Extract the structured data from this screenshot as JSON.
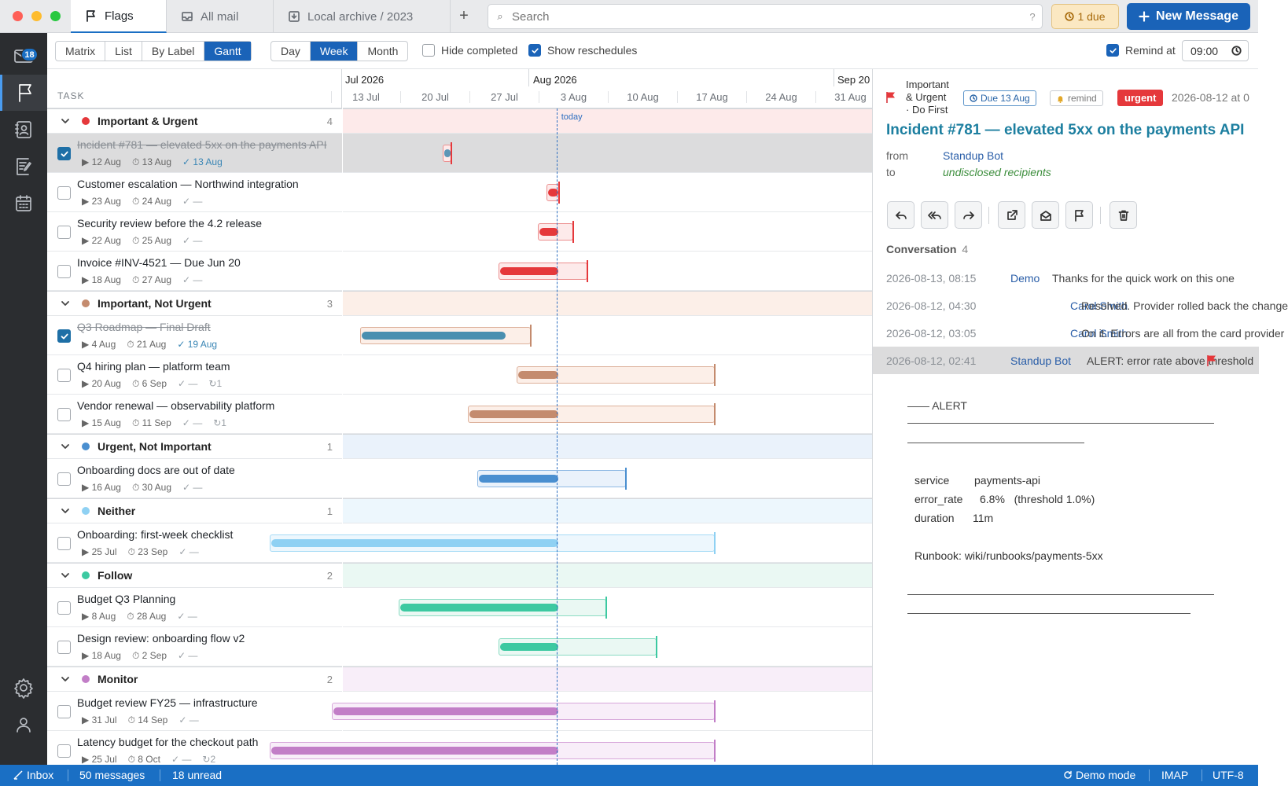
{
  "titlebar": {
    "tabs": [
      {
        "label": "Flags"
      },
      {
        "label": "All mail"
      },
      {
        "label": "Local archive / 2023"
      }
    ],
    "add_tab": "+",
    "search_placeholder": "Search",
    "search_help": "?",
    "due_label": "1 due",
    "new_message": "New Message"
  },
  "rail": {
    "inbox_badge": "18"
  },
  "toolbar": {
    "views": [
      "Matrix",
      "List",
      "By Label",
      "Gantt"
    ],
    "active_view": "Gantt",
    "scales": [
      "Day",
      "Week",
      "Month"
    ],
    "active_scale": "Week",
    "hide_completed": {
      "label": "Hide completed",
      "checked": false
    },
    "show_reschedules": {
      "label": "Show reschedules",
      "checked": true
    },
    "remind_at": {
      "label": "Remind at",
      "checked": true,
      "time": "09:00"
    }
  },
  "task_header": "TASK",
  "timeline": {
    "months": [
      "Jul 2026",
      "Aug 2026",
      "Sep 20"
    ],
    "weeks": [
      "13 Jul",
      "20 Jul",
      "27 Jul",
      "3 Aug",
      "10 Aug",
      "17 Aug",
      "24 Aug",
      "31 Aug"
    ],
    "today_label": "today"
  },
  "groups": [
    {
      "name": "Important & Urgent",
      "count": "4",
      "color": "#e5383b",
      "light": "#fdeaea",
      "mid": "#f4bcbc",
      "border": "#ec8f8f",
      "tasks": [
        {
          "title": "Incident #781 — elevated 5xx on the payments API",
          "start": "12 Aug",
          "due": "13 Aug",
          "done": "13 Aug",
          "completed": true,
          "selected": true,
          "reschedules": "",
          "bar": {
            "start": 12.5,
            "inner_start": 12.5,
            "inner_end": 13.1,
            "end": 13.4
          },
          "inner_color": "#5c96b6"
        },
        {
          "title": "Customer escalation — Northwind integration",
          "start": "23 Aug",
          "due": "24 Aug",
          "done": "—",
          "completed": false,
          "selected": false,
          "reschedules": "",
          "bar": {
            "start": 23,
            "inner_start": 23,
            "inner_end": 24,
            "end": 24.3
          }
        },
        {
          "title": "Security review before the 4.2 release",
          "start": "22 Aug",
          "due": "25 Aug",
          "done": "—",
          "completed": false,
          "selected": false,
          "reschedules": "",
          "bar": {
            "start": 22.1,
            "inner_start": 22.1,
            "inner_end": 24,
            "end": 25.7
          }
        },
        {
          "title": "Invoice #INV-4521 — Due Jun 20",
          "start": "18 Aug",
          "due": "27 Aug",
          "done": "—",
          "completed": false,
          "selected": false,
          "reschedules": "",
          "bar": {
            "start": 18.1,
            "inner_start": 18.1,
            "inner_end": 24,
            "end": 27.1
          }
        }
      ]
    },
    {
      "name": "Important, Not Urgent",
      "count": "3",
      "color": "#c48b6e",
      "light": "#fcefe8",
      "mid": "#ecc7b4",
      "border": "#ddb19b",
      "tasks": [
        {
          "title": "Q3 Roadmap — Final Draft",
          "start": "4 Aug",
          "due": "21 Aug",
          "done": "19 Aug",
          "completed": true,
          "selected": false,
          "reschedules": "",
          "bar": {
            "start": 4.1,
            "inner_start": 4.1,
            "inner_end": 18.7,
            "end": 21.4
          },
          "inner_color": "#4a8fb0"
        },
        {
          "title": "Q4 hiring plan — platform team",
          "start": "20 Aug",
          "due": "6 Sep",
          "done": "—",
          "completed": false,
          "selected": false,
          "reschedules": "1",
          "bar": {
            "start": 20,
            "inner_start": 20,
            "inner_end": 24,
            "end": 40
          }
        },
        {
          "title": "Vendor renewal — observability platform",
          "start": "15 Aug",
          "due": "11 Sep",
          "done": "—",
          "completed": false,
          "selected": false,
          "reschedules": "1",
          "bar": {
            "start": 15,
            "inner_start": 15,
            "inner_end": 24,
            "end": 40
          }
        }
      ]
    },
    {
      "name": "Urgent, Not Important",
      "count": "1",
      "color": "#4a8fd0",
      "light": "#eaf2fb",
      "mid": "#bcd6ef",
      "border": "#8fb9e4",
      "tasks": [
        {
          "title": "Onboarding docs are out of date",
          "start": "16 Aug",
          "due": "30 Aug",
          "done": "—",
          "completed": false,
          "selected": false,
          "reschedules": "",
          "bar": {
            "start": 16,
            "inner_start": 16,
            "inner_end": 24,
            "end": 31
          }
        }
      ]
    },
    {
      "name": "Neither",
      "count": "1",
      "color": "#8fd1f3",
      "light": "#edf7fd",
      "mid": "#bde5f8",
      "border": "#a6dbf6",
      "tasks": [
        {
          "title": "Onboarding: first-week checklist",
          "start": "25 Jul",
          "due": "23 Sep",
          "done": "—",
          "completed": false,
          "selected": false,
          "reschedules": "",
          "bar": {
            "start": -5,
            "inner_start": -5,
            "inner_end": 24,
            "end": 40
          }
        }
      ]
    },
    {
      "name": "Follow",
      "count": "2",
      "color": "#3cc9a1",
      "light": "#eaf8f3",
      "mid": "#b9ebdb",
      "border": "#8bdcc3",
      "tasks": [
        {
          "title": "Budget Q3 Planning",
          "start": "8 Aug",
          "due": "28 Aug",
          "done": "—",
          "completed": false,
          "selected": false,
          "reschedules": "",
          "bar": {
            "start": 8,
            "inner_start": 8,
            "inner_end": 24,
            "end": 29
          }
        },
        {
          "title": "Design review: onboarding flow v2",
          "start": "18 Aug",
          "due": "2 Sep",
          "done": "—",
          "completed": false,
          "selected": false,
          "reschedules": "",
          "bar": {
            "start": 18.1,
            "inner_start": 18.1,
            "inner_end": 24,
            "end": 34.1
          }
        }
      ]
    },
    {
      "name": "Monitor",
      "count": "2",
      "color": "#c27ec7",
      "light": "#f8eef9",
      "mid": "#e6c6e8",
      "border": "#d7a6da",
      "tasks": [
        {
          "title": "Budget review FY25 — infrastructure",
          "start": "31 Jul",
          "due": "14 Sep",
          "done": "—",
          "completed": false,
          "selected": false,
          "reschedules": "",
          "bar": {
            "start": 1.3,
            "inner_start": 1.3,
            "inner_end": 24,
            "end": 40
          }
        },
        {
          "title": "Latency budget for the checkout path",
          "start": "25 Jul",
          "due": "8 Oct",
          "done": "—",
          "completed": false,
          "selected": false,
          "reschedules": "2",
          "bar": {
            "start": -5,
            "inner_start": -5,
            "inner_end": 24,
            "end": 40
          }
        }
      ]
    }
  ],
  "message": {
    "category": [
      "Important",
      "& Urgent",
      "· Do First"
    ],
    "due_chip": "Due 13 Aug",
    "remind_chip": "remind",
    "urgent_chip": "urgent",
    "date": "2026-08-12 at 0",
    "subject": "Incident #781 — elevated 5xx on the payments API",
    "from_label": "from",
    "from_value": "Standup Bot",
    "to_label": "to",
    "to_value": "undisclosed recipients",
    "conversation_label": "Conversation",
    "conversation_count": "4",
    "conversation": [
      {
        "date": "2026-08-13, 08:15",
        "who": "Demo",
        "preview": "Thanks for the quick work on this one",
        "selected": false
      },
      {
        "date": "2026-08-12, 04:30",
        "who": "Carol Smith",
        "preview": "Resolved. Provider rolled back the change",
        "selected": false
      },
      {
        "date": "2026-08-12, 03:05",
        "who": "Carol Smith",
        "preview": "On it. Errors are all from the card provider",
        "selected": false
      },
      {
        "date": "2026-08-12, 02:41",
        "who": "Standup Bot",
        "preview": "ALERT: error rate above threshold",
        "selected": true
      }
    ],
    "body": {
      "alert": "—— ALERT",
      "fields": [
        {
          "k": "service",
          "v": "payments-api"
        },
        {
          "k": "error_rate",
          "v": "6.8%   (threshold 1.0%)"
        },
        {
          "k": "duration",
          "v": "11m"
        }
      ],
      "runbook": "Runbook: wiki/runbooks/payments-5xx"
    }
  },
  "statusbar": {
    "folder": "Inbox",
    "messages": "50 messages",
    "unread": "18 unread",
    "mode": "Demo mode",
    "protocol": "IMAP",
    "encoding": "UTF-8"
  }
}
